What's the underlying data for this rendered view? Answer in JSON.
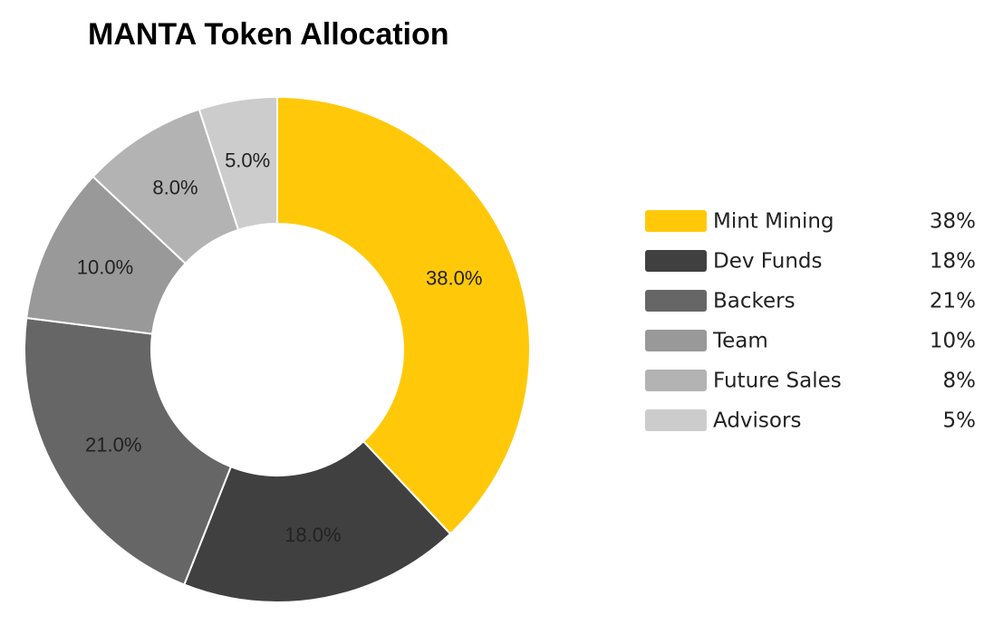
{
  "chart_data": {
    "type": "pie",
    "title": "MANTA Token Allocation",
    "categories": [
      "Mint Mining",
      "Dev Funds",
      "Backers",
      "Team",
      "Future Sales",
      "Advisors"
    ],
    "values": [
      38,
      18,
      21,
      10,
      8,
      5
    ],
    "value_labels": [
      "38.0%",
      "18.0%",
      "21.0%",
      "10.0%",
      "8.0%",
      "5.0%"
    ],
    "legend_value_labels": [
      "38%",
      "18%",
      "21%",
      "10%",
      "8%",
      "5%"
    ],
    "colors": [
      "#ffc90a",
      "#404040",
      "#666666",
      "#999999",
      "#b3b3b3",
      "#cccccc"
    ],
    "donut": true,
    "legend": "right"
  }
}
